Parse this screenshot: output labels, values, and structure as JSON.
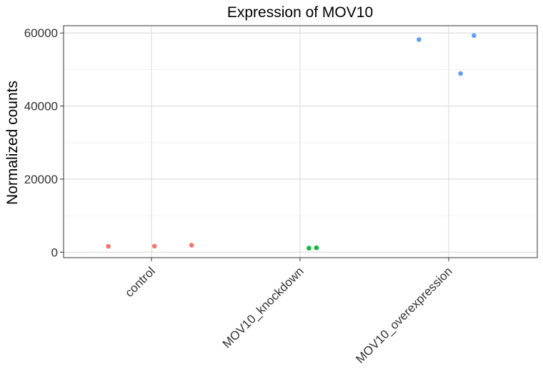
{
  "chart_data": {
    "type": "scatter",
    "title": "Expression of MOV10",
    "xlabel": "",
    "ylabel": "Normalized counts",
    "categories": [
      "control",
      "MOV10_knockdown",
      "MOV10_overexpression"
    ],
    "ylim": [
      -1500,
      62000
    ],
    "yticks": [
      0,
      20000,
      40000,
      60000
    ],
    "yticks_minor": [
      10000,
      30000,
      50000
    ],
    "grid": true,
    "legend": "none",
    "colors": [
      "#F8766D",
      "#00BA38",
      "#619CFF"
    ],
    "series": [
      {
        "category": "control",
        "color": "#F8766D",
        "points": [
          {
            "jitter": -0.29,
            "value": 1600
          },
          {
            "jitter": 0.02,
            "value": 1650
          },
          {
            "jitter": 0.27,
            "value": 1900
          }
        ]
      },
      {
        "category": "MOV10_knockdown",
        "color": "#00BA38",
        "points": [
          {
            "jitter": 0.06,
            "value": 1100
          },
          {
            "jitter": 0.11,
            "value": 1200
          }
        ]
      },
      {
        "category": "MOV10_overexpression",
        "color": "#619CFF",
        "points": [
          {
            "jitter": -0.2,
            "value": 58200
          },
          {
            "jitter": 0.08,
            "value": 48900
          },
          {
            "jitter": 0.17,
            "value": 59300
          }
        ]
      }
    ]
  }
}
